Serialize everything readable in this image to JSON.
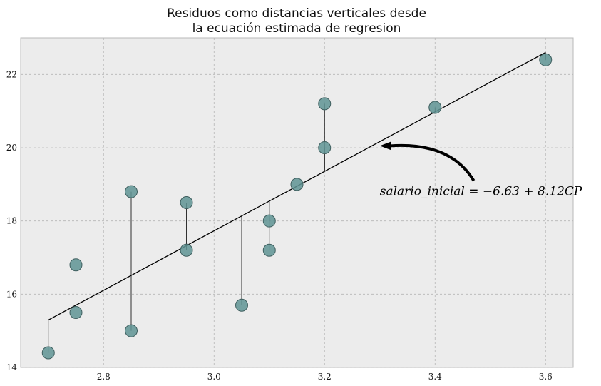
{
  "chart_data": {
    "type": "scatter",
    "title": [
      "Residuos como distancias verticales desde",
      "la ecuación estimada de regresion"
    ],
    "xlabel": "",
    "ylabel": "",
    "xlim": [
      2.65,
      3.65
    ],
    "ylim": [
      14.0,
      23.0
    ],
    "xticks": [
      "2.8",
      "3.0",
      "3.2",
      "3.4",
      "3.6"
    ],
    "yticks": [
      "14",
      "16",
      "18",
      "20",
      "22"
    ],
    "grid": true,
    "points": [
      {
        "x": 2.7,
        "y": 14.4
      },
      {
        "x": 2.75,
        "y": 16.8
      },
      {
        "x": 2.75,
        "y": 15.5
      },
      {
        "x": 2.85,
        "y": 18.8
      },
      {
        "x": 2.85,
        "y": 15.0
      },
      {
        "x": 2.95,
        "y": 18.5
      },
      {
        "x": 2.95,
        "y": 17.2
      },
      {
        "x": 3.05,
        "y": 15.7
      },
      {
        "x": 3.1,
        "y": 18.0
      },
      {
        "x": 3.1,
        "y": 17.2
      },
      {
        "x": 3.15,
        "y": 19.0
      },
      {
        "x": 3.2,
        "y": 21.2
      },
      {
        "x": 3.2,
        "y": 20.0
      },
      {
        "x": 3.4,
        "y": 21.1
      },
      {
        "x": 3.6,
        "y": 22.4
      }
    ],
    "regression": {
      "intercept": -6.63,
      "slope": 8.12,
      "x_range": [
        2.7,
        3.6
      ]
    },
    "annotation": {
      "text": "salario_inicial = −6.63 + 8.12CP",
      "arrow_tip": {
        "x": 3.3,
        "y": 20.05
      },
      "arrow_tail": {
        "x": 3.47,
        "y": 19.1
      },
      "text_anchor": {
        "x": 3.3,
        "y": 18.7
      }
    },
    "colors": {
      "point_fill": "#5f9494",
      "point_stroke": "#3f5f5f",
      "line": "#000000",
      "background": "#ececec",
      "grid": "#b5b5b5"
    }
  }
}
